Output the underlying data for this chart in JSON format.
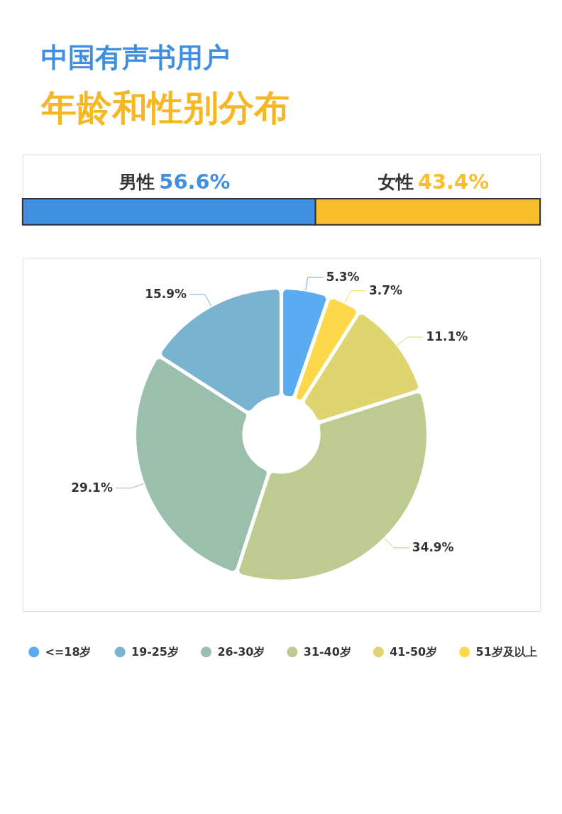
{
  "chart_data": [
    {
      "type": "bar",
      "title": "中国有声书用户",
      "subtitle": "年龄和性别分布",
      "orientation": "horizontal",
      "stacked": true,
      "tick_labels": false,
      "categories": [
        null
      ],
      "series": [
        {
          "name": "男性",
          "color": "#4190e0",
          "values": [
            56.6
          ],
          "value_labels": [
            "56.6%"
          ]
        },
        {
          "name": "女性",
          "color": "#f8bf2b",
          "values": [
            43.4
          ],
          "value_labels": [
            "43.4%"
          ]
        }
      ]
    },
    {
      "type": "donut",
      "categories": [
        "<=18岁",
        "19-25岁",
        "26-30岁",
        "31-40岁",
        "41-50岁",
        "51岁及以上"
      ],
      "values": [
        5.3,
        15.9,
        29.1,
        34.9,
        11.1,
        3.7
      ],
      "colors": [
        "#5aabf0",
        "#7ab3cf",
        "#9bbfad",
        "#bdcb91",
        "#dfd470",
        "#fdd84b"
      ],
      "value_labels": [
        "5.3%",
        "15.9%",
        "29.1%",
        "34.9%",
        "11.1%",
        "3.7%"
      ],
      "legend": "bottom"
    }
  ]
}
